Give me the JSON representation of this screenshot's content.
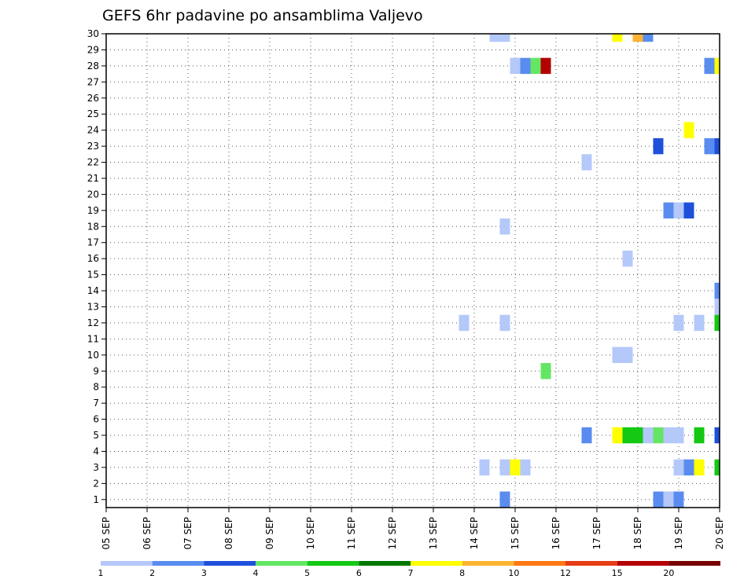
{
  "chart_data": {
    "type": "heatmap",
    "title": "GEFS 6hr padavine po ansamblima Valjevo",
    "xlabel": "",
    "ylabel": "",
    "x_tick_labels": [
      "05 SEP",
      "06 SEP",
      "07 SEP",
      "08 SEP",
      "09 SEP",
      "10 SEP",
      "11 SEP",
      "12 SEP",
      "13 SEP",
      "14 SEP",
      "15 SEP",
      "16 SEP",
      "17 SEP",
      "18 SEP",
      "19 SEP",
      "20 SEP"
    ],
    "y_tick_labels": [
      "1",
      "2",
      "3",
      "4",
      "5",
      "6",
      "7",
      "8",
      "9",
      "10",
      "11",
      "12",
      "13",
      "14",
      "15",
      "16",
      "17",
      "18",
      "19",
      "20",
      "21",
      "22",
      "23",
      "24",
      "25",
      "26",
      "27",
      "28",
      "29",
      "30"
    ],
    "xlim": [
      0,
      15
    ],
    "ylim": [
      0.5,
      30
    ],
    "time_step": "6hr",
    "grid": true,
    "legend": {
      "position": "bottom",
      "labels": [
        "1",
        "2",
        "3",
        "4",
        "5",
        "6",
        "7",
        "8",
        "10",
        "12",
        "15",
        "20"
      ],
      "colors": [
        "#b4c8fa",
        "#5a8cf0",
        "#1e50dc",
        "#64e664",
        "#14c814",
        "#007800",
        "#ffff00",
        "#ffb432",
        "#ff7814",
        "#e63c14",
        "#b40000",
        "#780000"
      ]
    },
    "cells": [
      {
        "ensemble": 30,
        "day": 9.5,
        "value": 1
      },
      {
        "ensemble": 30,
        "day": 9.75,
        "value": 1
      },
      {
        "ensemble": 30,
        "day": 12.5,
        "value": 7
      },
      {
        "ensemble": 30,
        "day": 13,
        "value": 8
      },
      {
        "ensemble": 30,
        "day": 13.25,
        "value": 2
      },
      {
        "ensemble": 28,
        "day": 10,
        "value": 1
      },
      {
        "ensemble": 28,
        "day": 10.25,
        "value": 2
      },
      {
        "ensemble": 28,
        "day": 10.5,
        "value": 4
      },
      {
        "ensemble": 28,
        "day": 10.75,
        "value": 15
      },
      {
        "ensemble": 28,
        "day": 14.75,
        "value": 2
      },
      {
        "ensemble": 28,
        "day": 15,
        "value": 7
      },
      {
        "ensemble": 24,
        "day": 14.25,
        "value": 7
      },
      {
        "ensemble": 23,
        "day": 13.5,
        "value": 3
      },
      {
        "ensemble": 23,
        "day": 14.75,
        "value": 2
      },
      {
        "ensemble": 23,
        "day": 15,
        "value": 3
      },
      {
        "ensemble": 22,
        "day": 11.75,
        "value": 1
      },
      {
        "ensemble": 19,
        "day": 13.75,
        "value": 2
      },
      {
        "ensemble": 19,
        "day": 14,
        "value": 1
      },
      {
        "ensemble": 19,
        "day": 14.25,
        "value": 3
      },
      {
        "ensemble": 18,
        "day": 9.75,
        "value": 1
      },
      {
        "ensemble": 16,
        "day": 12.75,
        "value": 1
      },
      {
        "ensemble": 14,
        "day": 15,
        "value": 2
      },
      {
        "ensemble": 13,
        "day": 15,
        "value": 1
      },
      {
        "ensemble": 12,
        "day": 8.75,
        "value": 1
      },
      {
        "ensemble": 12,
        "day": 9.75,
        "value": 1
      },
      {
        "ensemble": 12,
        "day": 14,
        "value": 1
      },
      {
        "ensemble": 12,
        "day": 14.5,
        "value": 1
      },
      {
        "ensemble": 12,
        "day": 15,
        "value": 5
      },
      {
        "ensemble": 10,
        "day": 12.5,
        "value": 1
      },
      {
        "ensemble": 10,
        "day": 12.75,
        "value": 1
      },
      {
        "ensemble": 9,
        "day": 10.75,
        "value": 4
      },
      {
        "ensemble": 5,
        "day": 11.75,
        "value": 2
      },
      {
        "ensemble": 5,
        "day": 12.5,
        "value": 7
      },
      {
        "ensemble": 5,
        "day": 12.75,
        "value": 5
      },
      {
        "ensemble": 5,
        "day": 13,
        "value": 5
      },
      {
        "ensemble": 5,
        "day": 13.25,
        "value": 1
      },
      {
        "ensemble": 5,
        "day": 13.5,
        "value": 4
      },
      {
        "ensemble": 5,
        "day": 13.75,
        "value": 1
      },
      {
        "ensemble": 5,
        "day": 14,
        "value": 1
      },
      {
        "ensemble": 5,
        "day": 14.5,
        "value": 5
      },
      {
        "ensemble": 5,
        "day": 15,
        "value": 3
      },
      {
        "ensemble": 3,
        "day": 9.25,
        "value": 1
      },
      {
        "ensemble": 3,
        "day": 9.75,
        "value": 1
      },
      {
        "ensemble": 3,
        "day": 10,
        "value": 7
      },
      {
        "ensemble": 3,
        "day": 10.25,
        "value": 1
      },
      {
        "ensemble": 3,
        "day": 14,
        "value": 1
      },
      {
        "ensemble": 3,
        "day": 14.25,
        "value": 2
      },
      {
        "ensemble": 3,
        "day": 14.5,
        "value": 7
      },
      {
        "ensemble": 3,
        "day": 15,
        "value": 5
      },
      {
        "ensemble": 1,
        "day": 9.75,
        "value": 2
      },
      {
        "ensemble": 1,
        "day": 13.5,
        "value": 2
      },
      {
        "ensemble": 1,
        "day": 13.75,
        "value": 1
      },
      {
        "ensemble": 1,
        "day": 14,
        "value": 2
      }
    ]
  }
}
